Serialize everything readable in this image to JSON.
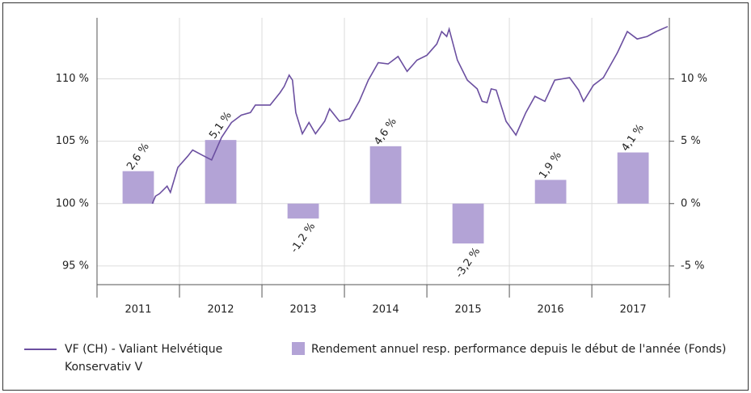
{
  "chart_data": {
    "type": "combo",
    "categories": [
      "2011",
      "2012",
      "2013",
      "2014",
      "2015",
      "2016",
      "2017"
    ],
    "xlim": [
      2011,
      2017.94
    ],
    "xticks": [
      2011,
      2012,
      2013,
      2014,
      2015,
      2016,
      2017
    ],
    "ylim": [
      93.5,
      114.9
    ],
    "yticks": [
      {
        "value": 95,
        "label": "95 %"
      },
      {
        "value": 100,
        "label": "100 %"
      },
      {
        "value": 105,
        "label": "105 %"
      },
      {
        "value": 110,
        "label": "110 %"
      }
    ],
    "y2lim": [
      -6.5,
      14.9
    ],
    "y2ticks": [
      {
        "value": -5,
        "label": "-5 %"
      },
      {
        "value": 0,
        "label": "0 %"
      },
      {
        "value": 5,
        "label": "5 %"
      },
      {
        "value": 10,
        "label": "10 %"
      }
    ],
    "grid": true,
    "series": [
      {
        "name": "VF (CH) - Valiant Helvétique Konservativ V",
        "type": "line",
        "color": "#6b4fa0",
        "axis": "y",
        "x": [
          2011.67,
          2011.71,
          2011.76,
          2011.85,
          2011.89,
          2011.98,
          2012.1,
          2012.16,
          2012.27,
          2012.39,
          2012.51,
          2012.63,
          2012.75,
          2012.86,
          2012.92,
          2013.1,
          2013.22,
          2013.27,
          2013.33,
          2013.37,
          2013.41,
          2013.49,
          2013.57,
          2013.65,
          2013.76,
          2013.82,
          2013.94,
          2014.06,
          2014.18,
          2014.29,
          2014.41,
          2014.53,
          2014.65,
          2014.76,
          2014.88,
          2015.0,
          2015.12,
          2015.18,
          2015.24,
          2015.27,
          2015.37,
          2015.49,
          2015.61,
          2015.67,
          2015.73,
          2015.78,
          2015.84,
          2015.96,
          2016.08,
          2016.2,
          2016.31,
          2016.43,
          2016.55,
          2016.73,
          2016.84,
          2016.9,
          2017.02,
          2017.14,
          2017.31,
          2017.43,
          2017.55,
          2017.67,
          2017.78,
          2017.92
        ],
        "values": [
          100.0,
          100.6,
          100.8,
          101.4,
          100.9,
          102.9,
          103.8,
          104.3,
          103.9,
          103.5,
          105.3,
          106.5,
          107.1,
          107.3,
          107.9,
          107.9,
          108.9,
          109.4,
          110.3,
          109.9,
          107.3,
          105.6,
          106.5,
          105.6,
          106.6,
          107.6,
          106.6,
          106.8,
          108.2,
          109.9,
          111.3,
          111.2,
          111.8,
          110.6,
          111.5,
          111.9,
          112.8,
          113.8,
          113.4,
          114.0,
          111.5,
          109.9,
          109.2,
          108.2,
          108.1,
          109.2,
          109.1,
          106.6,
          105.5,
          107.3,
          108.6,
          108.2,
          109.9,
          110.1,
          109.1,
          108.2,
          109.5,
          110.1,
          112.1,
          113.8,
          113.2,
          113.4,
          113.8,
          114.2
        ]
      },
      {
        "name": "Rendement annuel resp. performance depuis le début de l'année (Fonds)",
        "type": "bar",
        "color": "#b3a3d6",
        "axis": "y2",
        "values": [
          2.6,
          5.1,
          -1.2,
          4.6,
          -3.2,
          1.9,
          4.1
        ],
        "value_labels": [
          "2,6 %",
          "5,1 %",
          "-1,2 %",
          "4,6 %",
          "-3,2 %",
          "1,9 %",
          "4,1 %"
        ]
      }
    ]
  }
}
